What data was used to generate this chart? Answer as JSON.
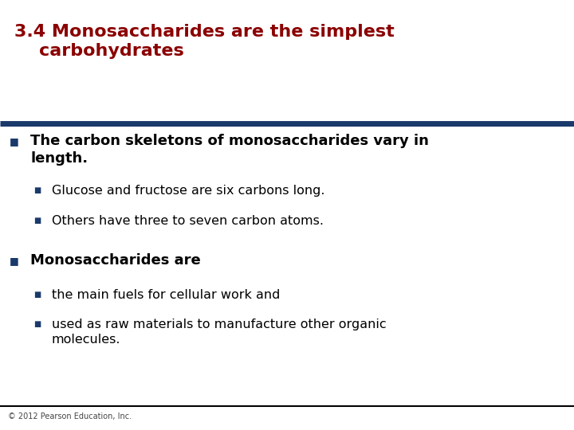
{
  "title_line1": "3.4 Monosaccharides are the simplest",
  "title_line2": "    carbohydrates",
  "title_color": "#8B0000",
  "title_fontsize": 16,
  "separator_color": "#1a3a6b",
  "background_color": "#FFFFFF",
  "bullet_color": "#1a3a6b",
  "footer_text": "© 2012 Pearson Education, Inc.",
  "footer_color": "#444444",
  "footer_fontsize": 7,
  "content": [
    {
      "level": 1,
      "text": "The carbon skeletons of monosaccharides vary in\nlength.",
      "fontsize": 13,
      "bold": true,
      "color": "#000000"
    },
    {
      "level": 2,
      "text": "Glucose and fructose are six carbons long.",
      "fontsize": 11.5,
      "bold": false,
      "color": "#000000"
    },
    {
      "level": 2,
      "text": "Others have three to seven carbon atoms.",
      "fontsize": 11.5,
      "bold": false,
      "color": "#000000"
    },
    {
      "level": 1,
      "text": "Monosaccharides are",
      "fontsize": 13,
      "bold": true,
      "color": "#000000"
    },
    {
      "level": 2,
      "text": "the main fuels for cellular work and",
      "fontsize": 11.5,
      "bold": false,
      "color": "#000000"
    },
    {
      "level": 2,
      "text": "used as raw materials to manufacture other organic\nmolecules.",
      "fontsize": 11.5,
      "bold": false,
      "color": "#000000"
    }
  ]
}
